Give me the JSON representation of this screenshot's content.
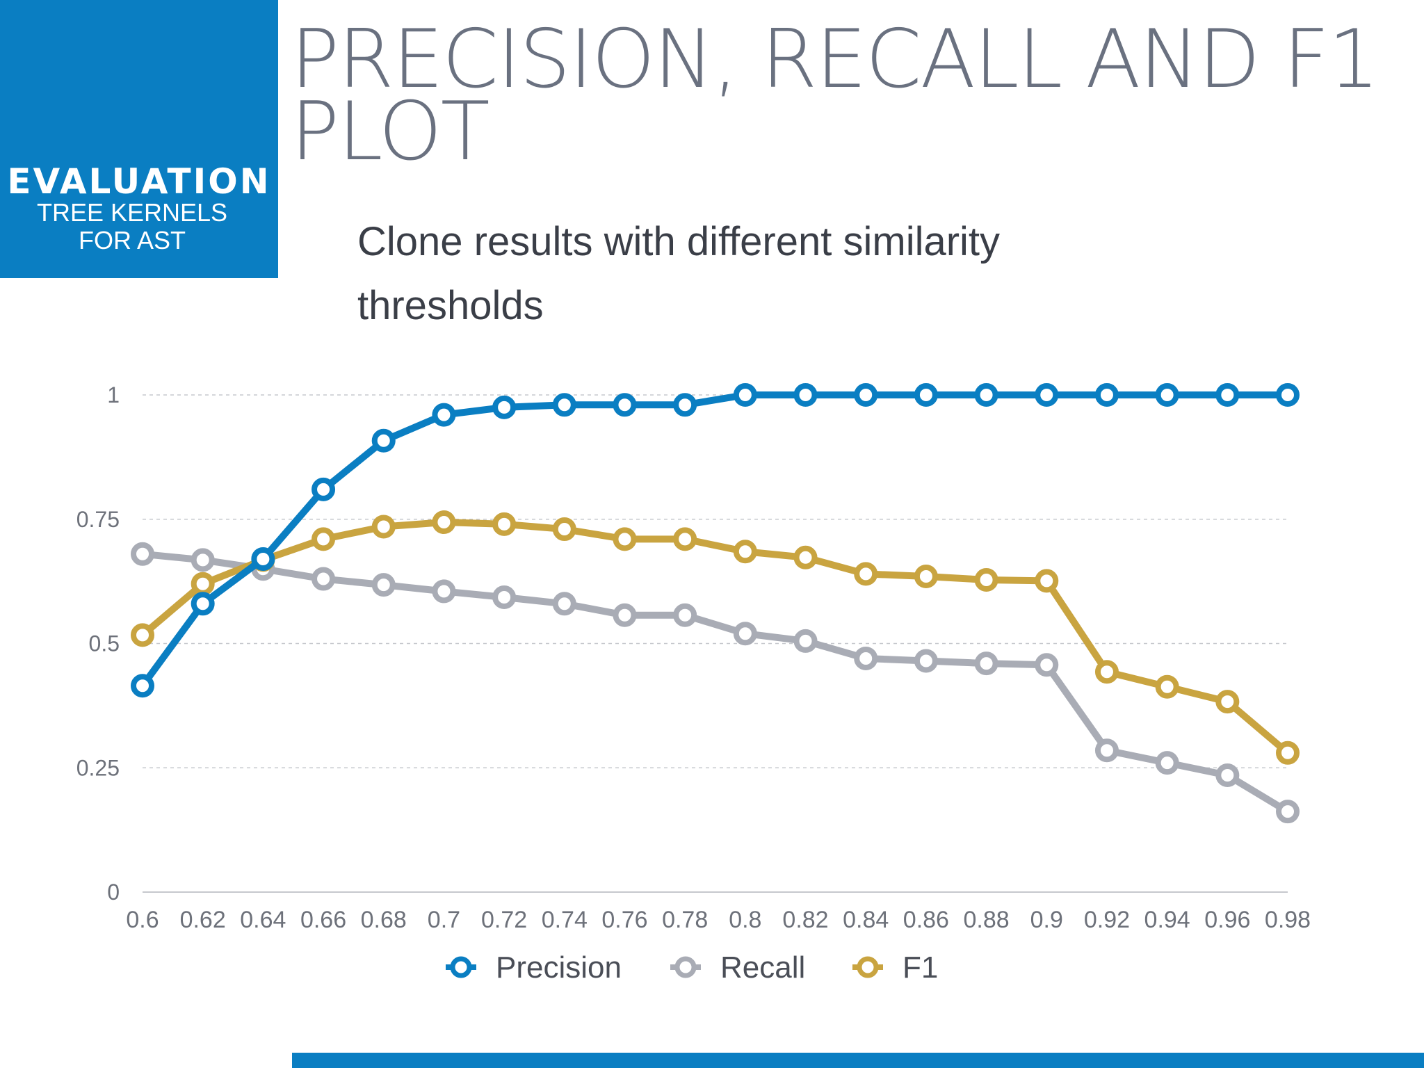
{
  "section": {
    "title": "EVALUATION",
    "subtitle_line1": "TREE KERNELS",
    "subtitle_line2": "FOR AST"
  },
  "slide": {
    "title_line1": "PRECISION, RECALL AND F1",
    "title_line2": "PLOT",
    "subtitle_line1": "Clone results with different similarity",
    "subtitle_line2": "thresholds"
  },
  "colors": {
    "accent": "#0a7ec2",
    "precision": "#0a7ec2",
    "recall": "#a9acb5",
    "f1": "#c9a440"
  },
  "chart_data": {
    "type": "line",
    "title": "",
    "xlabel": "",
    "ylabel": "",
    "categories": [
      "0.6",
      "0.62",
      "0.64",
      "0.66",
      "0.68",
      "0.7",
      "0.72",
      "0.74",
      "0.76",
      "0.78",
      "0.8",
      "0.82",
      "0.84",
      "0.86",
      "0.88",
      "0.9",
      "0.92",
      "0.94",
      "0.96",
      "0.98"
    ],
    "y_ticks": [
      "0",
      "0.25",
      "0.5",
      "0.75",
      "1"
    ],
    "ylim": [
      0,
      1
    ],
    "grid": true,
    "legend_position": "bottom",
    "series": [
      {
        "name": "Precision",
        "color": "#0a7ec2",
        "values": [
          0.415,
          0.58,
          0.67,
          0.81,
          0.908,
          0.96,
          0.975,
          0.98,
          0.98,
          0.98,
          1,
          1,
          1,
          1,
          1,
          1,
          1,
          1,
          1,
          1
        ]
      },
      {
        "name": "Recall",
        "color": "#a9acb5",
        "values": [
          0.68,
          0.668,
          0.65,
          0.63,
          0.618,
          0.605,
          0.593,
          0.58,
          0.557,
          0.557,
          0.52,
          0.505,
          0.47,
          0.465,
          0.46,
          0.457,
          0.285,
          0.26,
          0.235,
          0.162
        ]
      },
      {
        "name": "F1",
        "color": "#c9a440",
        "values": [
          0.517,
          0.62,
          0.668,
          0.71,
          0.735,
          0.744,
          0.74,
          0.73,
          0.71,
          0.71,
          0.685,
          0.673,
          0.64,
          0.635,
          0.628,
          0.626,
          0.443,
          0.413,
          0.383,
          0.28
        ]
      }
    ]
  }
}
